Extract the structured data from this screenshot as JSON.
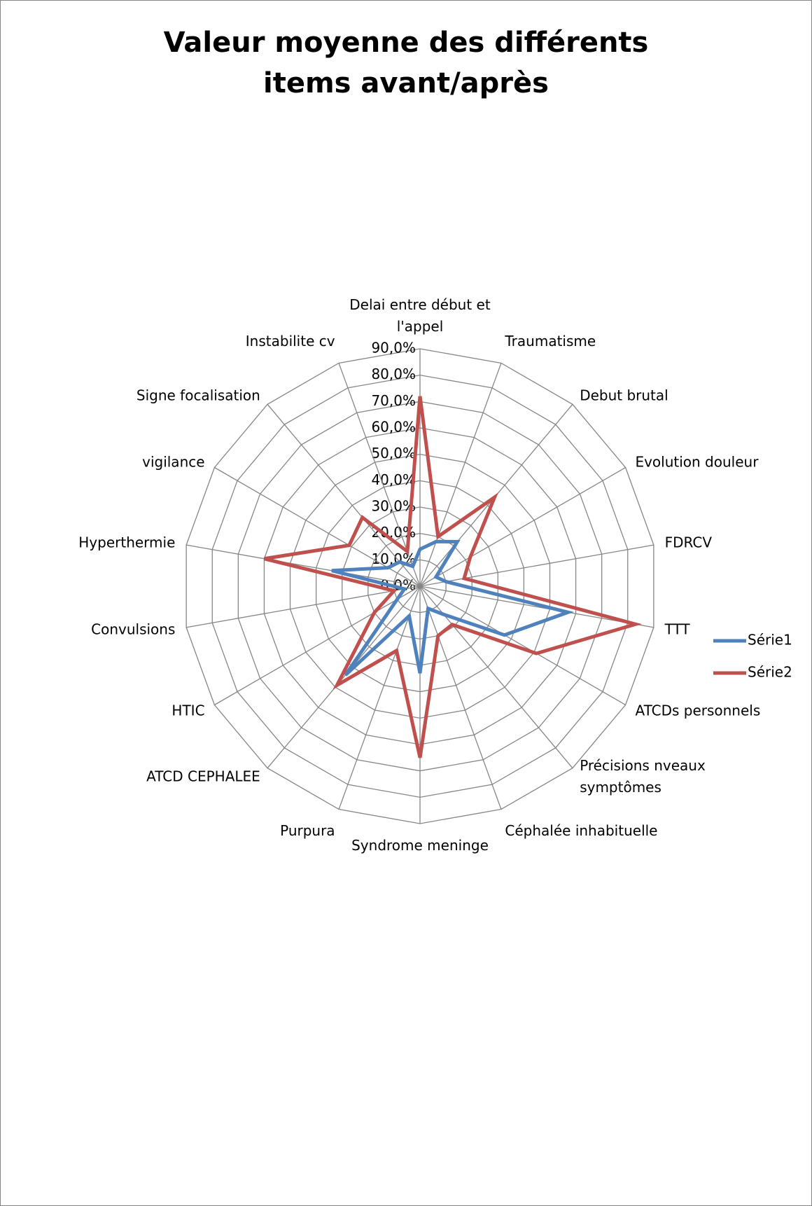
{
  "chart_data": {
    "type": "radar",
    "title": "Valeur moyenne des différents items avant/après",
    "categories": [
      "Delai entre début et l'appel",
      "Traumatisme",
      "Debut brutal",
      "Evolution douleur",
      "FDRCV",
      "TTT",
      "ATCDs personnels",
      "Précisions nveaux symptômes",
      "Céphalée inhabituelle",
      "Syndrome meninge",
      "Purpura",
      "ATCD CEPHALEE",
      "HTIC",
      "Convulsions",
      "Hyperthermie",
      "vigilance",
      "Signe focalisation",
      "Instabilite cv"
    ],
    "series": [
      {
        "name": "Série1",
        "color": "#4f81bd",
        "values": [
          14,
          18,
          22,
          7,
          10,
          57,
          37,
          14,
          9,
          33,
          12,
          44,
          10,
          6,
          34,
          14,
          12,
          8
        ]
      },
      {
        "name": "Série2",
        "color": "#c0504d",
        "values": [
          72,
          20,
          44,
          22,
          17,
          83,
          51,
          19,
          20,
          65,
          26,
          49,
          20,
          10,
          60,
          31,
          34,
          14
        ]
      }
    ],
    "ylim": [
      0,
      90
    ],
    "yticks": [
      {
        "value": 0,
        "label": "0,0%"
      },
      {
        "value": 10,
        "label": "10,0%"
      },
      {
        "value": 20,
        "label": "20,0%"
      },
      {
        "value": 30,
        "label": "30,0%"
      },
      {
        "value": 40,
        "label": "40,0%"
      },
      {
        "value": 50,
        "label": "50,0%"
      },
      {
        "value": 60,
        "label": "60,0%"
      },
      {
        "value": 70,
        "label": "70,0%"
      },
      {
        "value": 80,
        "label": "80,0%"
      },
      {
        "value": 90,
        "label": "90,0%"
      }
    ],
    "grid": true,
    "legend": "right"
  }
}
